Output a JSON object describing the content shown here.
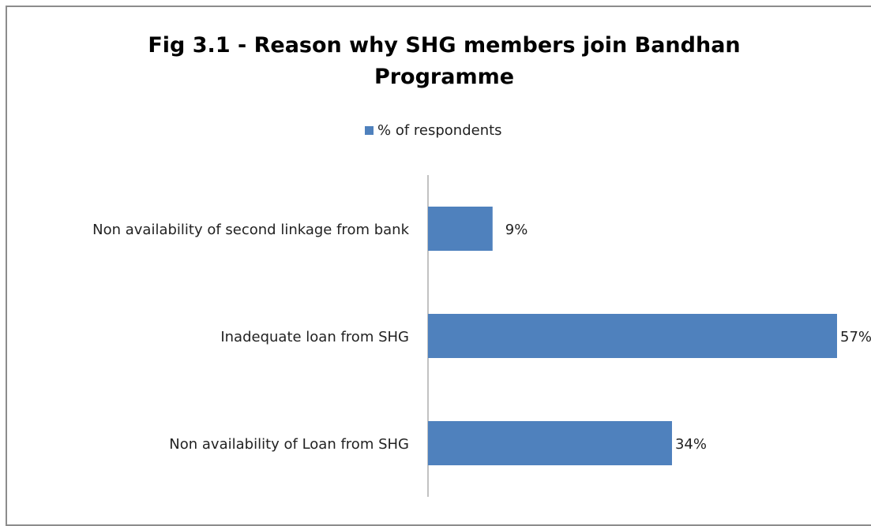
{
  "chart_data": {
    "type": "bar",
    "orientation": "horizontal",
    "title_line1": "Fig 3.1 - Reason why SHG members join Bandhan",
    "title_line2": "Programme",
    "categories": [
      "Non availability of second linkage from bank",
      "Inadequate loan from SHG",
      "Non availability of Loan from SHG"
    ],
    "series": [
      {
        "name": "% of respondents",
        "values": [
          9,
          57,
          34
        ],
        "labels": [
          "9%",
          "57%",
          "34%"
        ],
        "color": "#4f81bd"
      }
    ],
    "xlim": [
      0,
      60
    ],
    "grid": false,
    "legend_position": "top"
  }
}
